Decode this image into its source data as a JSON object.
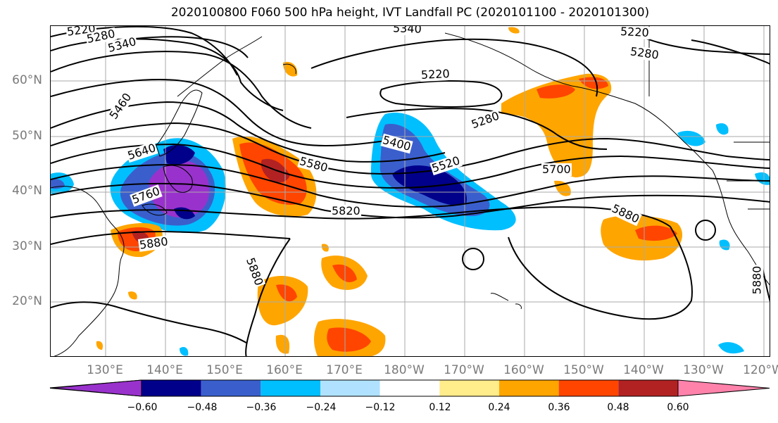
{
  "title": "2020100800 F060 500 hPa height, IVT Landfall PC (2020101100 - 2020101300)",
  "lat_labels": [
    "60°N",
    "50°N",
    "40°N",
    "30°N",
    "20°N"
  ],
  "lon_labels": [
    "130°E",
    "140°E",
    "150°E",
    "160°E",
    "170°E",
    "180°W",
    "170°W",
    "160°W",
    "150°W",
    "140°W",
    "130°W",
    "120°W"
  ],
  "contour_labels": [
    "5220",
    "5280",
    "5340",
    "5340",
    "5220",
    "5280",
    "5220",
    "5460",
    "5400",
    "5280",
    "5640",
    "5580",
    "5520",
    "5700",
    "5760",
    "5820",
    "5880",
    "5880",
    "5880",
    "5880"
  ],
  "colorbar": {
    "tick_labels": [
      "−0.60",
      "−0.48",
      "−0.36",
      "−0.24",
      "−0.12",
      "0.12",
      "0.24",
      "0.36",
      "0.48",
      "0.60"
    ],
    "colors": [
      "#9932cc",
      "#00008b",
      "#3a5fcd",
      "#00bfff",
      "#b0e2ff",
      "#ffffff",
      "#ffec8b",
      "#ffa500",
      "#ff4500",
      "#b22222",
      "#ff82ab"
    ]
  }
}
